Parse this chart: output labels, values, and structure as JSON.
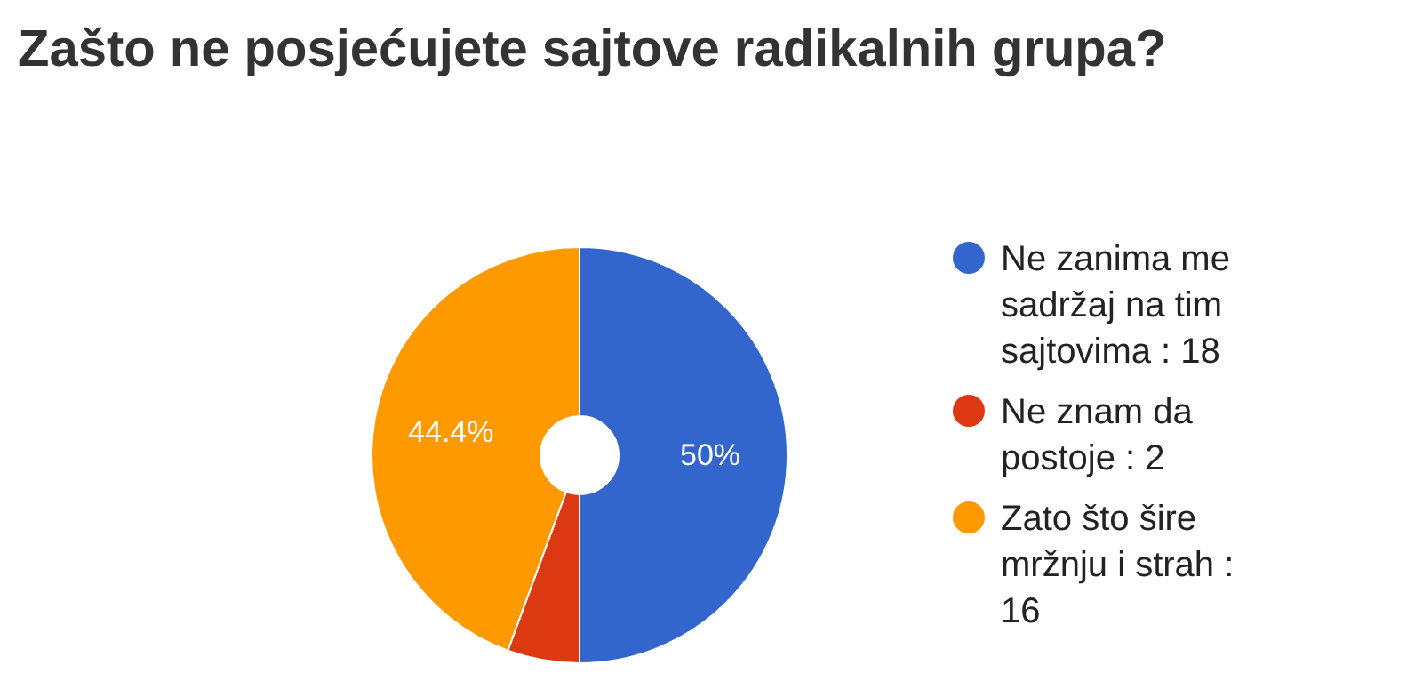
{
  "chart_data": {
    "type": "donut",
    "title": "Zašto ne posjećujete sajtove radikalnih grupa?",
    "categories": [
      "Ne zanima me sadržaj na tim sajtovima : 18",
      "Ne znam da postoje : 2",
      "Zato što šire mržnju i strah : 16"
    ],
    "values": [
      50,
      5.6,
      44.4
    ],
    "colors": [
      "#3366cc",
      "#dc3912",
      "#ff9900"
    ],
    "value_labels": [
      "50%",
      null,
      "44.4%"
    ],
    "legend": "right"
  }
}
